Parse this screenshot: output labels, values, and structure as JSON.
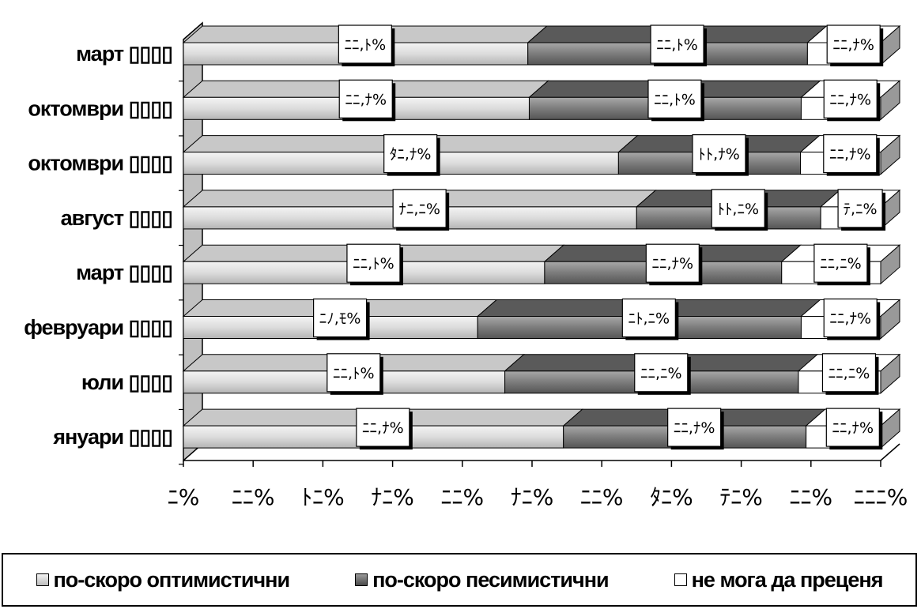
{
  "chart_data": {
    "type": "bar",
    "stacked": true,
    "orientation": "horizontal",
    "three_d": true,
    "categories": [
      "март ▯▯▯▯",
      "октомври ▯▯▯▯",
      "октомври ▯▯▯▯",
      "август ▯▯▯▯",
      "март ▯▯▯▯",
      "февруари ▯▯▯▯",
      "юли ▯▯▯▯",
      "януари ▯▯▯▯"
    ],
    "series": [
      {
        "name": "по-скоро оптимистични",
        "values": [
          49.4,
          49.6,
          62.4,
          65.0,
          51.8,
          42.2,
          46.1,
          54.5
        ],
        "labels": [
          "ﾆﾆ,ﾄ%",
          "ﾆﾆ,ﾅ%",
          "ﾀﾆ,ﾅ%",
          "ﾅﾆ,ﾆ%",
          "ﾆﾆ,ﾄ%",
          "ﾆﾉ,ﾓ%",
          "ﾆﾆ,ﾄ%",
          "ﾆﾆ,ﾅ%"
        ],
        "color": "#d4d4d4"
      },
      {
        "name": "по-скоро песимистични",
        "values": [
          40.1,
          39.0,
          26.1,
          26.4,
          34.0,
          46.4,
          42.1,
          34.8
        ],
        "labels": [
          "ﾆﾆ,ﾄ%",
          "ﾆﾆ,ﾄ%",
          "ﾄﾄ,ﾅ%",
          "ﾄﾄ,ﾆ%",
          "ﾆﾆ,ﾅ%",
          "ﾆﾄ,ﾆ%",
          "ﾆﾆ,ﾆ%",
          "ﾆﾆ,ﾅ%"
        ],
        "color": "#7a7a7a"
      },
      {
        "name": "не мога да преценя",
        "values": [
          10.5,
          11.4,
          11.5,
          8.6,
          14.2,
          11.4,
          11.8,
          10.7
        ],
        "labels": [
          "ﾆﾆ,ﾅ%",
          "ﾆﾆ,ﾅ%",
          "ﾆﾆ,ﾅ%",
          "ﾃ,ﾆ%",
          "ﾆﾆ,ﾆ%",
          "ﾆﾆ,ﾅ%",
          "ﾆﾆ,ﾆ%",
          "ﾆﾆ,ﾅ%"
        ],
        "color": "#ffffff"
      }
    ],
    "x_ticks": [
      "ﾆ%",
      "ﾆﾆ%",
      "ﾄﾆ%",
      "ﾅﾆ%",
      "ﾆﾆ%",
      "ﾅﾆ%",
      "ﾆﾆ%",
      "ﾀﾆ%",
      "ﾃﾆ%",
      "ﾆﾆ%",
      "ﾆﾆﾆ%"
    ],
    "xlim": [
      0,
      100
    ],
    "grid": false,
    "legend_position": "bottom"
  }
}
